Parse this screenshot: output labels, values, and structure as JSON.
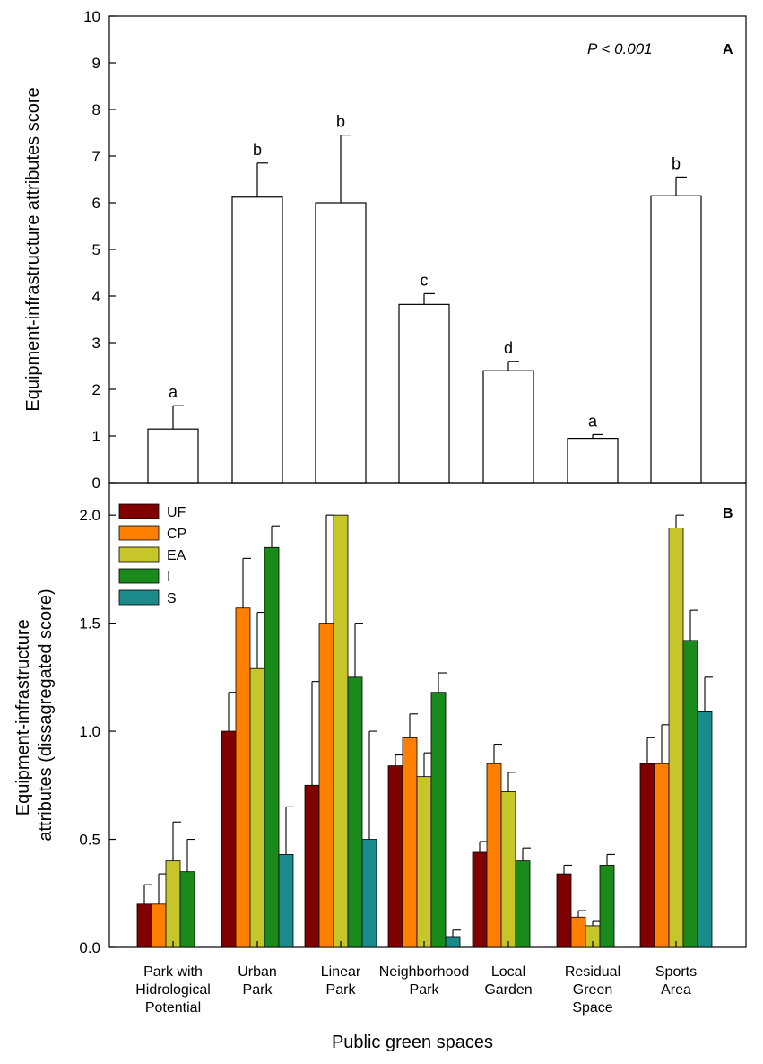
{
  "figure": {
    "xlabel": "Public green spaces",
    "panel_a_label": "A",
    "panel_b_label": "B",
    "p_value": "P < 0.001"
  },
  "categories": [
    [
      "Park with",
      "Hidrological",
      "Potential"
    ],
    [
      "Urban",
      "Park"
    ],
    [
      "Linear",
      "Park"
    ],
    [
      "Neighborhood",
      "Park"
    ],
    [
      "Local",
      "Garden"
    ],
    [
      "Residual",
      "Green",
      "Space"
    ],
    [
      "Sports",
      "Area"
    ]
  ],
  "colors": {
    "UF": "#800000",
    "CP": "#ff8000",
    "EA": "#c6c62a",
    "I": "#1a8a1a",
    "S": "#1a8a8a",
    "panel_a_bar": "#ffffff",
    "axis": "#000000"
  },
  "chart_data": [
    {
      "type": "bar",
      "panel": "A",
      "ylabel": "Equipment-infrastructure attributes score",
      "ylim": [
        0,
        10
      ],
      "yticks": [
        "0",
        "1",
        "2",
        "3",
        "4",
        "5",
        "6",
        "7",
        "8",
        "9",
        "10"
      ],
      "values": [
        1.15,
        6.12,
        6.0,
        3.82,
        2.4,
        0.95,
        6.15
      ],
      "errors": [
        0.5,
        0.73,
        1.45,
        0.23,
        0.2,
        0.08,
        0.4
      ],
      "significance": [
        "a",
        "b",
        "b",
        "c",
        "d",
        "a",
        "b"
      ]
    },
    {
      "type": "bar",
      "panel": "B",
      "ylabel": [
        "Equipment-infrastructure",
        "attributes (dissagregated score)"
      ],
      "ylim": [
        0,
        2.15
      ],
      "yticks": [
        "0.0",
        "0.5",
        "1.0",
        "1.5",
        "2.0"
      ],
      "ytick_values": [
        0,
        0.5,
        1.0,
        1.5,
        2.0
      ],
      "legend_position": "top-left",
      "series": [
        {
          "name": "UF",
          "values": [
            0.2,
            1.0,
            0.75,
            0.84,
            0.44,
            0.34,
            0.85
          ],
          "errors": [
            0.09,
            0.18,
            0.48,
            0.05,
            0.05,
            0.04,
            0.12
          ]
        },
        {
          "name": "CP",
          "values": [
            0.2,
            1.57,
            1.5,
            0.97,
            0.85,
            0.14,
            0.85
          ],
          "errors": [
            0.14,
            0.23,
            0.5,
            0.11,
            0.09,
            0.03,
            0.18
          ]
        },
        {
          "name": "EA",
          "values": [
            0.4,
            1.29,
            2.0,
            0.79,
            0.72,
            0.1,
            1.94
          ],
          "errors": [
            0.18,
            0.26,
            0.0,
            0.11,
            0.09,
            0.02,
            0.06
          ]
        },
        {
          "name": "I",
          "values": [
            0.35,
            1.85,
            1.25,
            1.18,
            0.4,
            0.38,
            1.42
          ],
          "errors": [
            0.15,
            0.1,
            0.25,
            0.09,
            0.06,
            0.05,
            0.14
          ]
        },
        {
          "name": "S",
          "values": [
            null,
            0.43,
            0.5,
            0.05,
            null,
            null,
            1.09
          ],
          "errors": [
            null,
            0.22,
            0.5,
            0.03,
            null,
            null,
            0.16
          ]
        }
      ]
    }
  ]
}
